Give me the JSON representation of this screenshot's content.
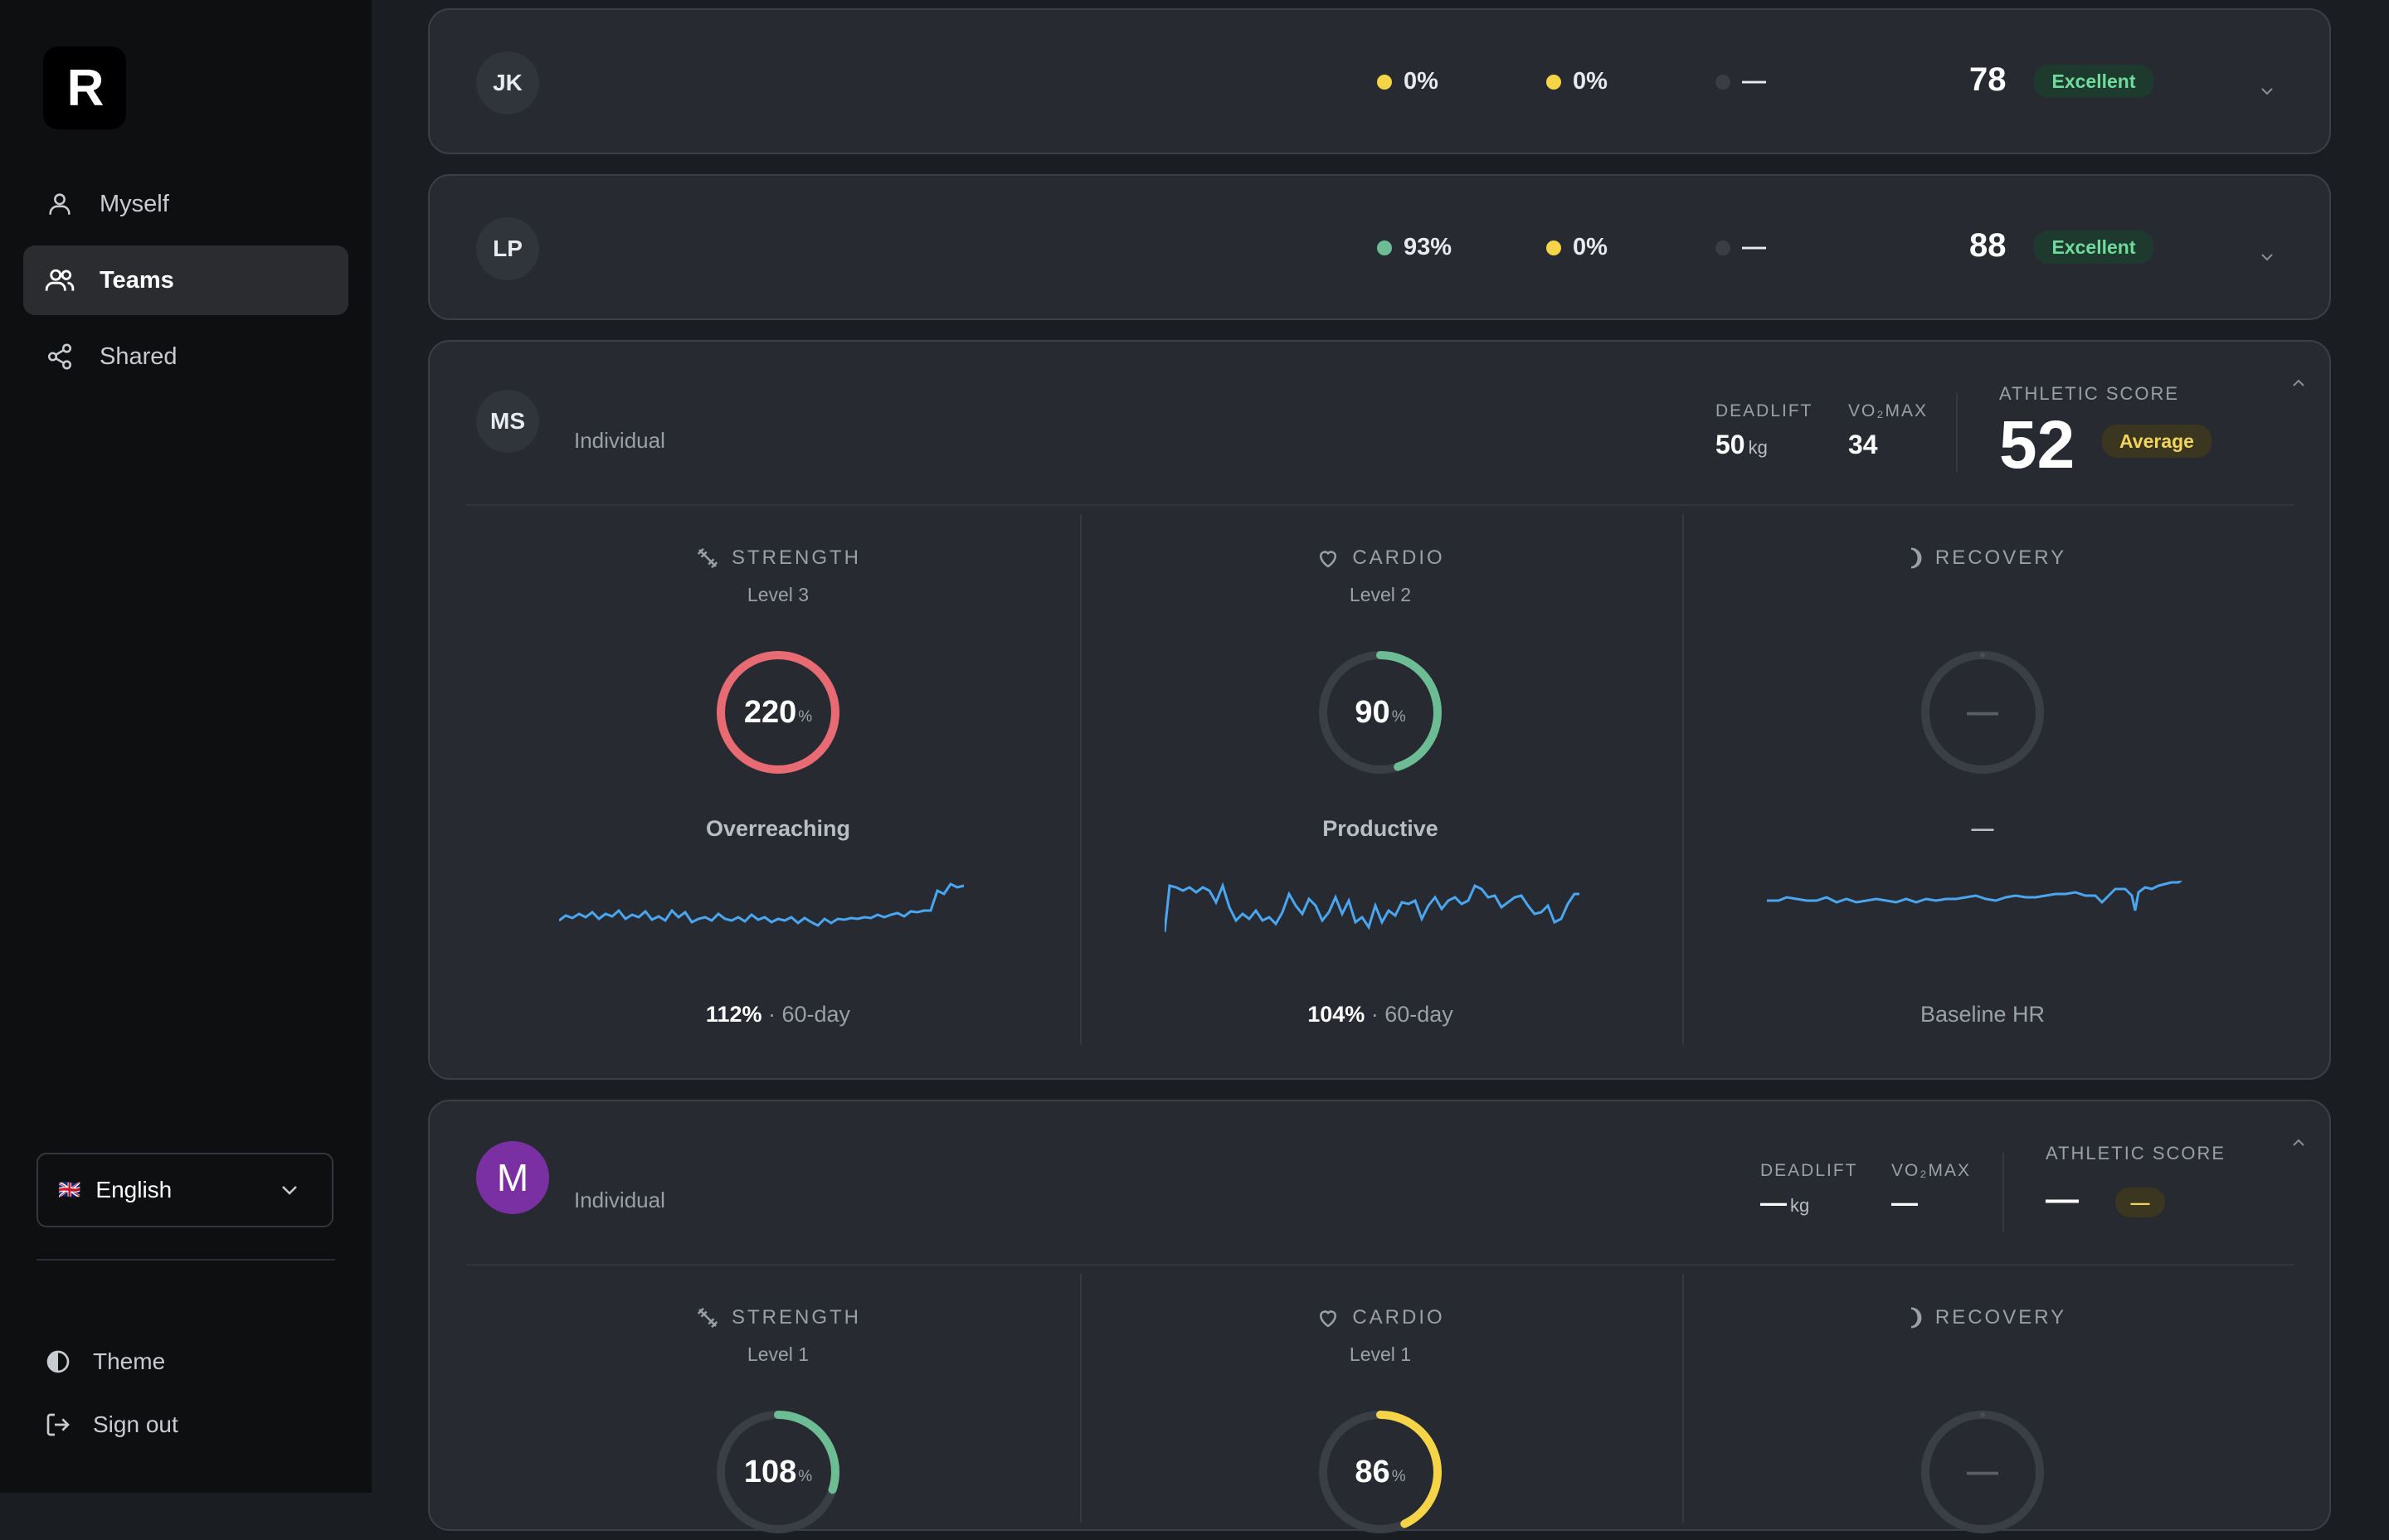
{
  "sidebar": {
    "logo_letter": "R",
    "nav": [
      {
        "label": "Myself",
        "icon": "user-icon"
      },
      {
        "label": "Teams",
        "icon": "users-icon",
        "active": true
      },
      {
        "label": "Shared",
        "icon": "share-icon"
      }
    ],
    "language": {
      "flag": "🇬🇧",
      "label": "English"
    },
    "footer": [
      {
        "label": "Theme",
        "icon": "theme-icon"
      },
      {
        "label": "Sign out",
        "icon": "sign-out-icon"
      }
    ]
  },
  "members": [
    {
      "initials": "JK",
      "strength_pct": "0%",
      "cardio_pct": "0%",
      "recovery": "—",
      "score": "78",
      "rating": "Excellent",
      "colors": {
        "strength": "#f5d547",
        "cardio": "#f5d547",
        "recovery": "#3a3d42"
      }
    },
    {
      "initials": "LP",
      "strength_pct": "93%",
      "cardio_pct": "0%",
      "recovery": "—",
      "score": "88",
      "rating": "Excellent",
      "colors": {
        "strength": "#6dbd94",
        "cardio": "#f5d547",
        "recovery": "#3a3d42"
      }
    },
    {
      "initials": "MS",
      "type": "Individual",
      "deadlift_label": "DEADLIFT",
      "deadlift": "50",
      "deadlift_unit": "kg",
      "vo2_label": "VO₂MAX",
      "vo2": "34",
      "score_label": "ATHLETIC SCORE",
      "score": "52",
      "rating": "Average",
      "columns": [
        {
          "title": "STRENGTH",
          "icon": "dumbbell-icon",
          "level": "Level 3",
          "ring_value": "220",
          "ring_unit": "%",
          "ring_fraction": 1.0,
          "ring_color": "#e86b73",
          "state": "Overreaching",
          "metric_value": "112%",
          "metric_suffix": " · 60-day"
        },
        {
          "title": "CARDIO",
          "icon": "heart-icon",
          "level": "Level 2",
          "ring_value": "90",
          "ring_unit": "%",
          "ring_fraction": 0.45,
          "ring_color": "#6dbd94",
          "state": "Productive",
          "metric_value": "104%",
          "metric_suffix": " · 60-day"
        },
        {
          "title": "RECOVERY",
          "icon": "moon-icon",
          "level": "",
          "ring_value": "—",
          "ring_unit": "",
          "ring_fraction": 0,
          "ring_color": "#3a3f46",
          "state": "—",
          "metric_value": "",
          "metric_suffix": "Baseline HR"
        }
      ]
    },
    {
      "initials": "M",
      "type": "Individual",
      "deadlift_label": "DEADLIFT",
      "deadlift": "—",
      "deadlift_unit": "kg",
      "vo2_label": "VO₂MAX",
      "vo2": "—",
      "score_label": "ATHLETIC SCORE",
      "score": "—",
      "rating": "—",
      "columns": [
        {
          "title": "STRENGTH",
          "icon": "dumbbell-icon",
          "level": "Level 1",
          "ring_value": "108",
          "ring_unit": "%",
          "ring_fraction": 0.3,
          "ring_color": "#6dbd94"
        },
        {
          "title": "CARDIO",
          "icon": "heart-icon",
          "level": "Level 1",
          "ring_value": "86",
          "ring_unit": "%",
          "ring_fraction": 0.43,
          "ring_color": "#f5d547"
        },
        {
          "title": "RECOVERY",
          "icon": "moon-icon",
          "level": "",
          "ring_value": "—",
          "ring_unit": "",
          "ring_fraction": 0,
          "ring_color": "#3a3f46"
        }
      ]
    }
  ],
  "colors": {
    "accent_line": "#4aa6f0",
    "avatar_purple": "#7a2fa3"
  }
}
